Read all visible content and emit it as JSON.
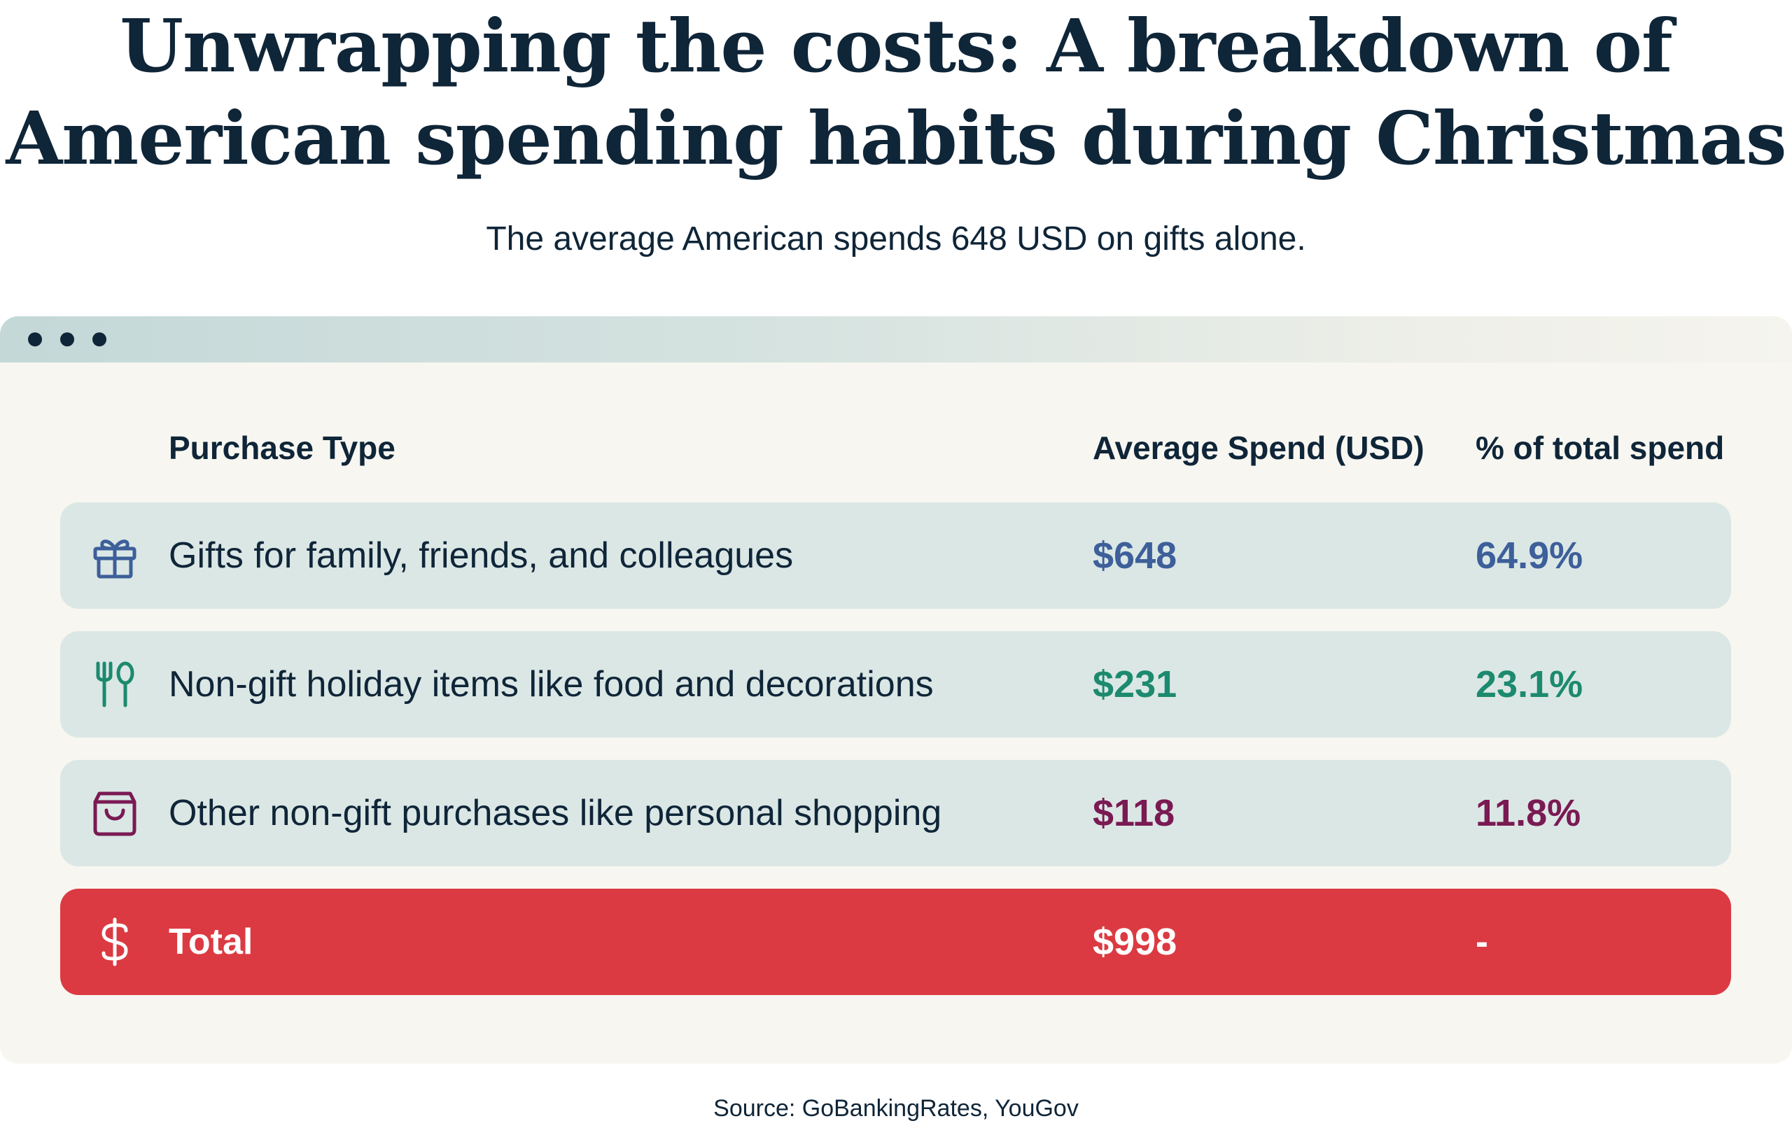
{
  "title_line1": "Unwrapping the costs: A breakdown of",
  "title_line2": "American spending habits during Christmas",
  "subtitle": "The average American spends 648 USD on gifts alone.",
  "table": {
    "headers": {
      "purchase_type": "Purchase Type",
      "average_spend": "Average Spend (USD)",
      "percent_total": "% of total spend"
    },
    "rows": [
      {
        "icon": "gift-icon",
        "label": "Gifts for family, friends, and colleagues",
        "amount": "$648",
        "percent": "64.9%",
        "color": "#3d5f9a"
      },
      {
        "icon": "fork-spoon-icon",
        "label": "Non-gift holiday items like food and decorations",
        "amount": "$231",
        "percent": "23.1%",
        "color": "#1c8a6e"
      },
      {
        "icon": "shopping-bag-icon",
        "label": "Other non-gift purchases like personal shopping",
        "amount": "$118",
        "percent": "11.8%",
        "color": "#7a1a53"
      }
    ],
    "total": {
      "icon": "dollar-icon",
      "label": "Total",
      "amount": "$998",
      "percent": "-",
      "color": "#dc3a42"
    }
  },
  "source": "Source: GoBankingRates, YouGov"
}
